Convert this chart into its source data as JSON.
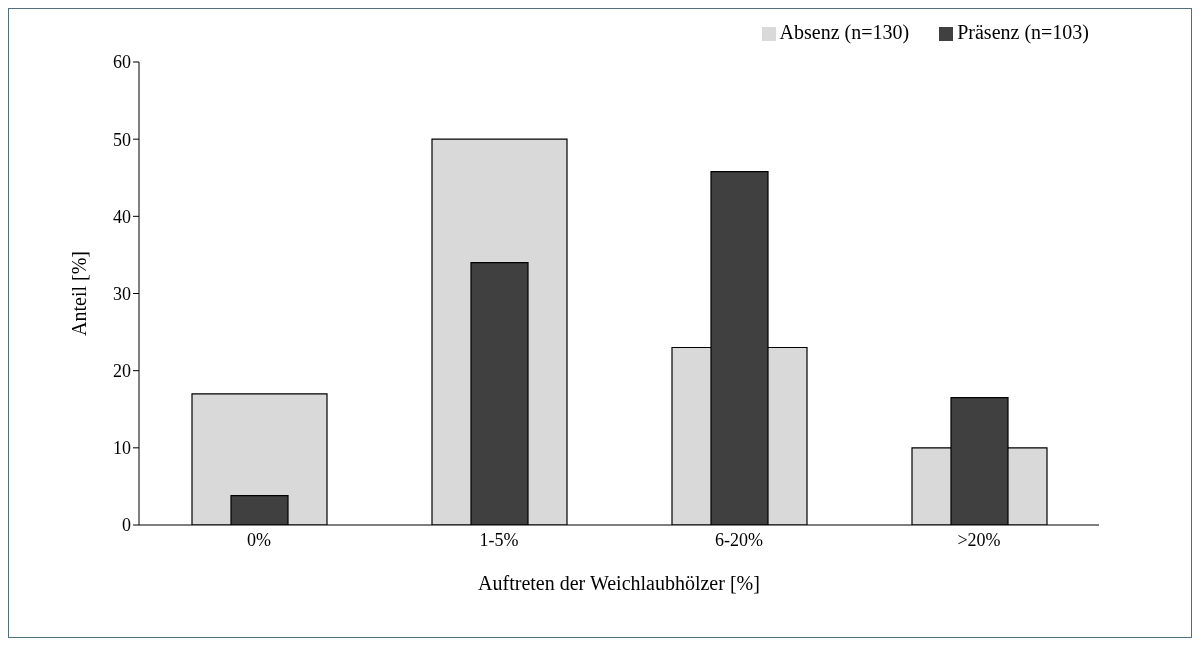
{
  "chart_data": {
    "type": "bar",
    "xlabel": "Auftreten der Weichlaubhölzer [%]",
    "ylabel": "Anteil [%]",
    "categories": [
      "0%",
      "1-5%",
      "6-20%",
      ">20%"
    ],
    "series": [
      {
        "name": "Absenz (n=130)",
        "color": "#d9d9d9",
        "values": [
          17,
          50,
          23,
          10
        ]
      },
      {
        "name": "Präsenz (n=103)",
        "color": "#404040",
        "values": [
          3.8,
          34,
          45.8,
          16.5
        ]
      }
    ],
    "ylim": [
      0,
      60
    ],
    "yticks": [
      0,
      10,
      20,
      30,
      40,
      50,
      60
    ],
    "legend": "top right",
    "grid": false
  }
}
